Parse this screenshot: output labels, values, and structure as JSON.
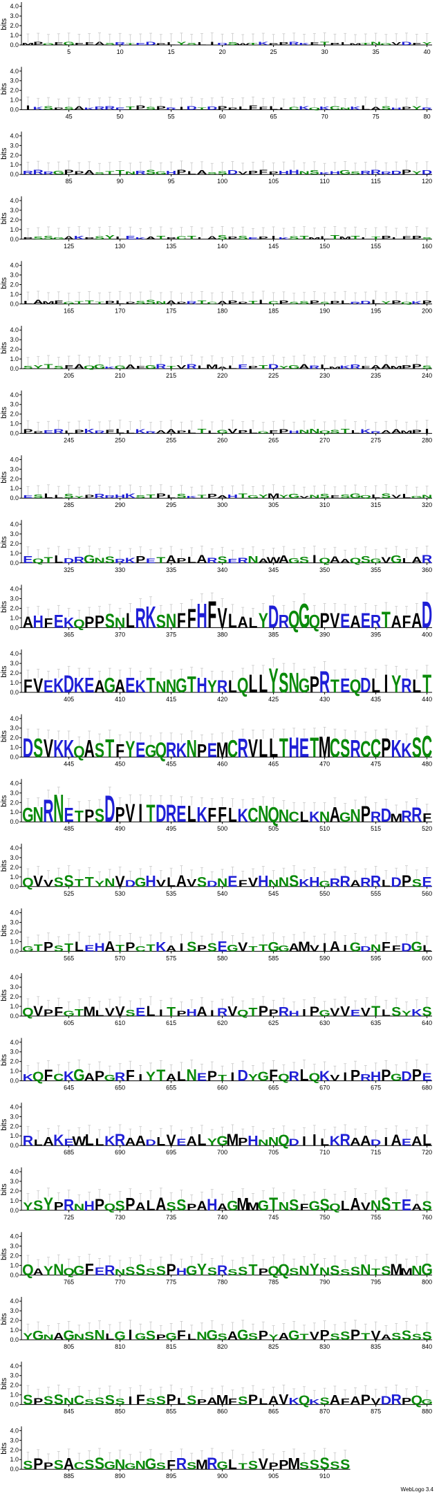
{
  "chart_data": {
    "type": "sequence-logo",
    "ylabel": "bits",
    "y_ticks": [
      "0.0",
      "1.0",
      "2.0",
      "3.0",
      "4.0"
    ],
    "ylim": [
      0,
      4.3
    ],
    "residues_per_row": 40,
    "colors": {
      "hydrophobic": "#000000",
      "polar": "#0a8a0a",
      "basic": "#1f1fd6",
      "acidic": "#1f1fd6",
      "neutral": "#0a8a0a"
    },
    "credit": "WebLogo 3.4",
    "rows": [
      {
        "start": 1,
        "end": 40,
        "ticks": [
          "5",
          "10",
          "15",
          "20",
          "25",
          "30",
          "35",
          "40"
        ],
        "mean_height": 0.25
      },
      {
        "start": 41,
        "end": 80,
        "ticks": [
          "45",
          "50",
          "55",
          "60",
          "65",
          "70",
          "75",
          "80"
        ],
        "mean_height": 0.3
      },
      {
        "start": 81,
        "end": 120,
        "ticks": [
          "85",
          "90",
          "95",
          "100",
          "105",
          "110",
          "115",
          "120"
        ],
        "mean_height": 0.35
      },
      {
        "start": 121,
        "end": 160,
        "ticks": [
          "125",
          "130",
          "135",
          "140",
          "145",
          "150",
          "155",
          "160"
        ],
        "mean_height": 0.3
      },
      {
        "start": 161,
        "end": 200,
        "ticks": [
          "165",
          "170",
          "175",
          "180",
          "185",
          "190",
          "195",
          "200"
        ],
        "mean_height": 0.3
      },
      {
        "start": 201,
        "end": 240,
        "ticks": [
          "205",
          "210",
          "215",
          "220",
          "225",
          "230",
          "235",
          "240"
        ],
        "mean_height": 0.35
      },
      {
        "start": 241,
        "end": 280,
        "ticks": [
          "245",
          "250",
          "255",
          "260",
          "265",
          "270",
          "275",
          "280"
        ],
        "mean_height": 0.35
      },
      {
        "start": 281,
        "end": 320,
        "ticks": [
          "285",
          "290",
          "295",
          "300",
          "305",
          "310",
          "315",
          "320"
        ],
        "mean_height": 0.35
      },
      {
        "start": 321,
        "end": 360,
        "ticks": [
          "325",
          "330",
          "335",
          "340",
          "345",
          "350",
          "355",
          "360"
        ],
        "mean_height": 0.6
      },
      {
        "start": 361,
        "end": 400,
        "ticks": [
          "365",
          "370",
          "375",
          "380",
          "385",
          "390",
          "395",
          "400"
        ],
        "mean_height": 1.3
      },
      {
        "start": 401,
        "end": 440,
        "ticks": [
          "405",
          "410",
          "415",
          "420",
          "425",
          "430",
          "435",
          "440"
        ],
        "mean_height": 1.2
      },
      {
        "start": 441,
        "end": 480,
        "ticks": [
          "445",
          "450",
          "455",
          "460",
          "465",
          "470",
          "475",
          "480"
        ],
        "mean_height": 1.4
      },
      {
        "start": 481,
        "end": 520,
        "ticks": [
          "485",
          "490",
          "495",
          "500",
          "505",
          "510",
          "515",
          "520"
        ],
        "mean_height": 1.2
      },
      {
        "start": 521,
        "end": 560,
        "ticks": [
          "525",
          "530",
          "535",
          "540",
          "545",
          "550",
          "555",
          "560"
        ],
        "mean_height": 0.9
      },
      {
        "start": 561,
        "end": 600,
        "ticks": [
          "565",
          "570",
          "575",
          "580",
          "585",
          "590",
          "595",
          "600"
        ],
        "mean_height": 0.8
      },
      {
        "start": 601,
        "end": 640,
        "ticks": [
          "605",
          "610",
          "615",
          "620",
          "625",
          "630",
          "635",
          "640"
        ],
        "mean_height": 0.8
      },
      {
        "start": 641,
        "end": 680,
        "ticks": [
          "645",
          "650",
          "655",
          "660",
          "665",
          "670",
          "675",
          "680"
        ],
        "mean_height": 0.9
      },
      {
        "start": 681,
        "end": 720,
        "ticks": [
          "685",
          "690",
          "695",
          "700",
          "705",
          "710",
          "715",
          "720"
        ],
        "mean_height": 0.9
      },
      {
        "start": 721,
        "end": 760,
        "ticks": [
          "725",
          "730",
          "735",
          "740",
          "745",
          "750",
          "755",
          "760"
        ],
        "mean_height": 1.0
      },
      {
        "start": 761,
        "end": 800,
        "ticks": [
          "765",
          "770",
          "775",
          "780",
          "785",
          "790",
          "795",
          "800"
        ],
        "mean_height": 0.9
      },
      {
        "start": 801,
        "end": 840,
        "ticks": [
          "805",
          "810",
          "815",
          "820",
          "825",
          "830",
          "835",
          "840"
        ],
        "mean_height": 0.8
      },
      {
        "start": 841,
        "end": 880,
        "ticks": [
          "845",
          "850",
          "855",
          "860",
          "865",
          "870",
          "875",
          "880"
        ],
        "mean_height": 0.8
      },
      {
        "start": 881,
        "end": 912,
        "ticks": [
          "885",
          "890",
          "895",
          "900",
          "905",
          "910"
        ],
        "mean_height": 0.9
      }
    ],
    "sequence": "MPGFGFFASRTEDPLYSLIDSWTKPPRKFTPLMTNGVDFYIKSPSAKRRETPSPRIDTDPPLFFLLCKQKCNKLASHPYRRRRGPPASTTNRSGHPLASSDVPFPHHNSKHGSRRRDPYDPSSGAKPSYLEKATPCTLASPSEPIKSTMLTMTLTPLFPSLAMFGTTTPLPSSNAPRTCAPPTLCPSSPSPLRDLYPQKPSYTSFAQGKGAFGRTVRLMALEPTDYGARLMKRFAAMPPSPPERLPKRFLLKRAAPLTLGVPLGFPHNNQSTLKRAAMPIESLLSYPRRHKSTPLSKTPAHTGYMYGVNSFSGQLSVLGNEQTLDRGNSRKPETAPLARSERNAWAGSIQAAQSGVGLARAHFEKQPPSNLRKSNFFHFVLALYDRQGQPVEAERTAFADFVEKDKEAGAEKTNNGTHYRLQLLYSNGPRTEQDLIYRLTDSVKKQASTFYEGQRKNPEMCRVLLTHETMCSRCCPKKSCGNRNETPSDPVITDRELKFFLKCNQNCLKNAGNPRDMRRFQVVSSTTYNVDGHVLAVSDNEFVHNNSKHGRRARRLDPSEGTPSTLEHATPCTKAISPSEGVTTGGAMVIAIGDNFFDGLQVPFGTMLVVSELITPHAIRVQTPPRHIPGVVEVTLSYKSKQFCKGAPGRFIYTALNEPTIDYGFQRLQKVIPRHPGDPERLAKEWLLKRAADLVEALYGMPHNNQDIILKRAADIAEALYSYPRNHPQSPALASSPAHAGMMGTNSFGSQLAVNSTEASQAYNQGFERNSSSSPHGYSRSSTPQQSNYNSSSNTSMMNGYGNAGNSNLGIGSPGFLNGSAGSPYAGTVPSSPTVASSSSSPSSNCSSSSIFSSPLSPAMFSPLAVKQKSAFAPVDRPQGSPPSACSSGNGNGSFRSMRGLTSVPPM",
    "tall_columns": {
      "361": 1.2,
      "362": 1.3,
      "363": 1.0,
      "364": 1.4,
      "365": 1.1,
      "366": 0.9,
      "367": 1.2,
      "368": 1.3,
      "369": 1.5,
      "370": 1.1,
      "371": 1.6,
      "372": 2.1,
      "373": 2.3,
      "374": 1.4,
      "375": 1.5,
      "376": 1.6,
      "377": 2.0,
      "378": 2.6,
      "379": 2.8,
      "380": 2.1,
      "381": 1.5,
      "382": 1.2,
      "383": 1.1,
      "384": 1.6,
      "385": 2.4,
      "386": 1.4,
      "387": 1.8,
      "388": 2.6,
      "389": 1.4,
      "390": 1.6,
      "391": 1.6,
      "392": 1.5,
      "393": 1.3,
      "394": 1.6,
      "395": 1.4,
      "396": 1.7,
      "397": 1.3,
      "398": 1.3,
      "399": 1.6,
      "400": 2.8,
      "401": 1.4,
      "402": 1.5,
      "403": 1.3,
      "404": 1.5,
      "405": 1.8,
      "406": 1.6,
      "407": 1.6,
      "408": 1.3,
      "409": 1.6,
      "410": 1.4,
      "411": 1.6,
      "412": 1.3,
      "413": 1.6,
      "414": 1.2,
      "415": 1.4,
      "416": 1.5,
      "417": 1.7,
      "418": 1.6,
      "419": 1.3,
      "420": 1.3,
      "421": 1.3,
      "422": 1.6,
      "423": 1.9,
      "424": 1.9,
      "425": 2.6,
      "426": 2.1,
      "427": 2.1,
      "428": 1.5,
      "429": 1.7,
      "430": 2.3,
      "431": 1.4,
      "432": 1.5,
      "433": 1.4,
      "434": 1.6,
      "435": 1.5,
      "436": 1.9,
      "437": 1.8,
      "438": 1.5,
      "439": 1.4,
      "440": 1.9,
      "441": 2.0,
      "442": 2.0,
      "443": 1.9,
      "444": 1.8,
      "445": 1.8,
      "446": 1.2,
      "447": 1.8,
      "448": 1.5,
      "449": 1.9,
      "450": 1.4,
      "451": 1.7,
      "452": 1.6,
      "453": 1.3,
      "454": 1.6,
      "455": 1.6,
      "456": 1.5,
      "457": 1.8,
      "458": 1.4,
      "459": 1.5,
      "460": 1.6,
      "461": 1.8,
      "462": 2.0,
      "463": 1.9,
      "464": 1.9,
      "465": 2.0,
      "466": 2.0,
      "467": 2.1,
      "468": 2.0,
      "469": 2.1,
      "470": 2.2,
      "471": 2.0,
      "472": 1.9,
      "473": 1.8,
      "474": 1.7,
      "475": 1.9,
      "476": 2.0,
      "477": 1.8,
      "478": 1.5,
      "479": 2.1,
      "480": 2.3,
      "481": 1.5,
      "482": 1.6,
      "483": 2.4,
      "484": 2.9,
      "485": 1.5,
      "486": 1.2,
      "487": 1.3,
      "488": 1.4,
      "489": 2.8,
      "490": 1.6,
      "491": 1.9,
      "492": 1.9,
      "493": 1.8,
      "494": 1.8,
      "495": 1.8,
      "496": 1.7,
      "497": 1.7,
      "498": 1.6,
      "499": 1.5,
      "500": 1.6,
      "501": 1.5,
      "502": 1.4,
      "503": 1.5,
      "504": 1.7,
      "505": 1.6,
      "506": 1.3,
      "507": 1.1,
      "508": 1.1,
      "509": 1.1,
      "510": 1.1
    }
  }
}
